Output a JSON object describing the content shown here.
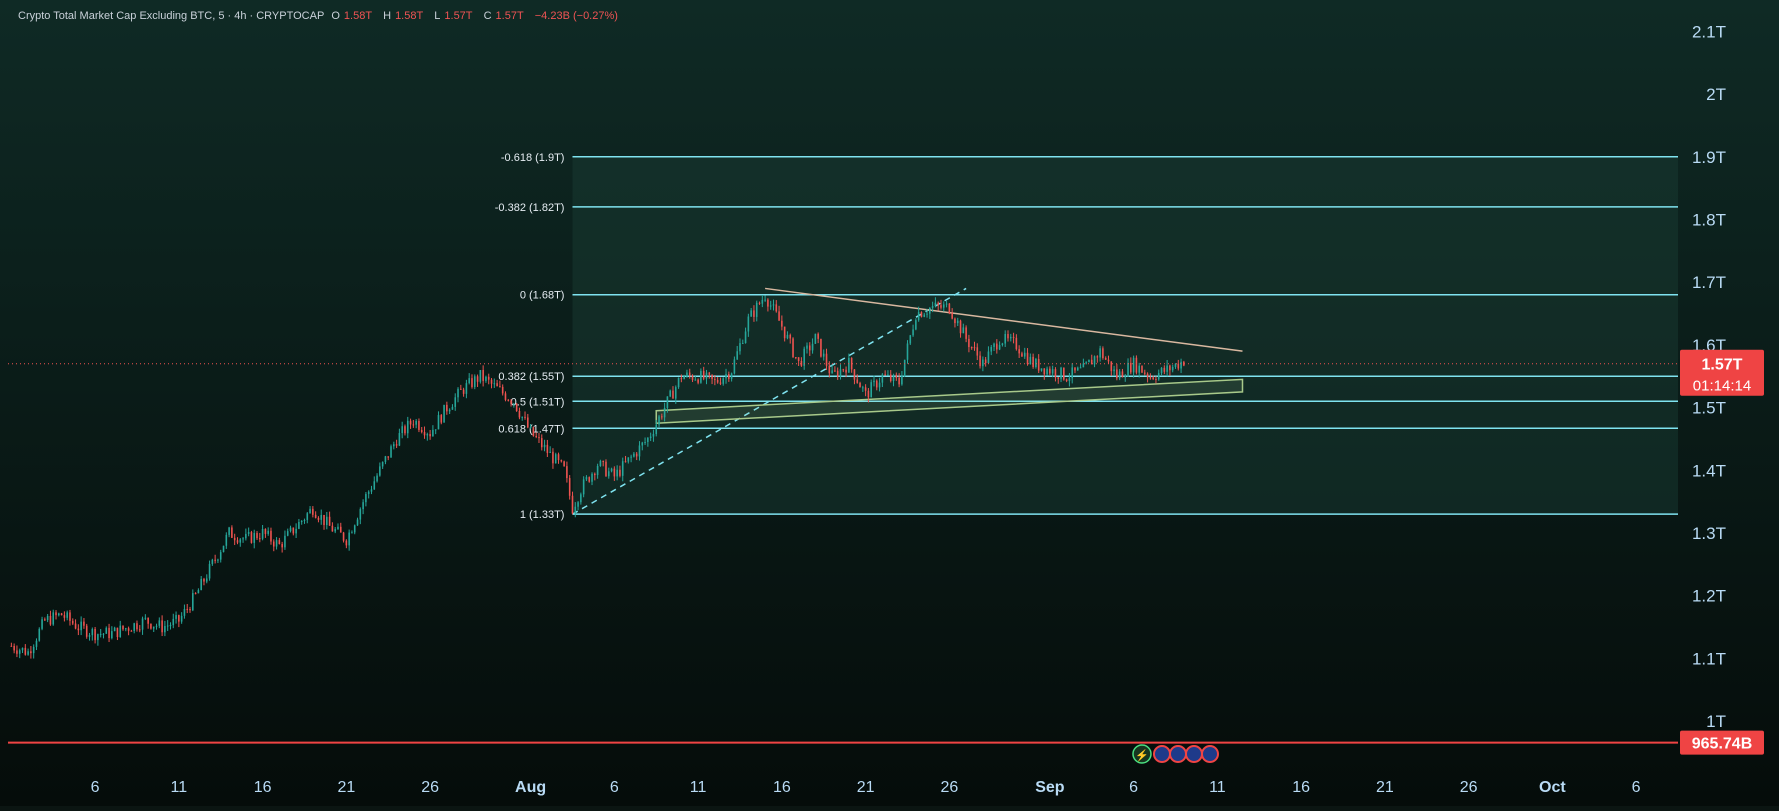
{
  "header": {
    "symbol_title": "Crypto Total Market Cap Excluding BTC, 5 · 4h · CRYPTOCAP",
    "open_label": "O",
    "open_value": "1.58T",
    "high_label": "H",
    "high_value": "1.58T",
    "low_label": "L",
    "low_value": "1.57T",
    "close_label": "C",
    "close_value": "1.57T",
    "change": "−4.23B (−0.27%)"
  },
  "price_axis": {
    "ticks": [
      {
        "label": "2.1T",
        "value": 2.1
      },
      {
        "label": "2T",
        "value": 2.0
      },
      {
        "label": "1.9T",
        "value": 1.9
      },
      {
        "label": "1.8T",
        "value": 1.8
      },
      {
        "label": "1.7T",
        "value": 1.7
      },
      {
        "label": "1.6T",
        "value": 1.6
      },
      {
        "label": "1.5T",
        "value": 1.5
      },
      {
        "label": "1.4T",
        "value": 1.4
      },
      {
        "label": "1.3T",
        "value": 1.3
      },
      {
        "label": "1.2T",
        "value": 1.2
      },
      {
        "label": "1.1T",
        "value": 1.1
      },
      {
        "label": "1T",
        "value": 1.0
      }
    ],
    "current_price_label": "1.57T",
    "current_price_value": 1.57,
    "countdown": "01:14:14",
    "alert_label": "965.74B",
    "alert_value": 0.96574
  },
  "time_axis": {
    "ticks": [
      {
        "label": "6",
        "day": -26,
        "bold": false
      },
      {
        "label": "11",
        "day": -21,
        "bold": false
      },
      {
        "label": "16",
        "day": -16,
        "bold": false
      },
      {
        "label": "21",
        "day": -11,
        "bold": false
      },
      {
        "label": "26",
        "day": -6,
        "bold": false
      },
      {
        "label": "Aug",
        "day": 0,
        "bold": true
      },
      {
        "label": "6",
        "day": 5,
        "bold": false
      },
      {
        "label": "11",
        "day": 10,
        "bold": false
      },
      {
        "label": "16",
        "day": 15,
        "bold": false
      },
      {
        "label": "21",
        "day": 20,
        "bold": false
      },
      {
        "label": "26",
        "day": 25,
        "bold": false
      },
      {
        "label": "Sep",
        "day": 31,
        "bold": true
      },
      {
        "label": "6",
        "day": 36,
        "bold": false
      },
      {
        "label": "11",
        "day": 41,
        "bold": false
      },
      {
        "label": "16",
        "day": 46,
        "bold": false
      },
      {
        "label": "21",
        "day": 51,
        "bold": false
      },
      {
        "label": "26",
        "day": 56,
        "bold": false
      },
      {
        "label": "Oct",
        "day": 61,
        "bold": true
      },
      {
        "label": "6",
        "day": 66,
        "bold": false
      }
    ]
  },
  "fibonacci": {
    "levels": [
      {
        "label": "-0.618 (1.9T)",
        "value": 1.9
      },
      {
        "label": "-0.382 (1.82T)",
        "value": 1.82
      },
      {
        "label": "0 (1.68T)",
        "value": 1.68
      },
      {
        "label": "0.382 (1.55T)",
        "value": 1.55
      },
      {
        "label": "0.5 (1.51T)",
        "value": 1.51
      },
      {
        "label": "0.618 (1.47T)",
        "value": 1.467
      },
      {
        "label": "1 (1.33T)",
        "value": 1.33
      }
    ],
    "start_day": 2.5,
    "end_day": 69.5,
    "color": "#7fe3f0",
    "fill_color": "#1a3d36"
  },
  "drawings": {
    "descending_trendline": {
      "from": {
        "day": 14,
        "value": 1.69
      },
      "to": {
        "day": 42.5,
        "value": 1.59
      },
      "color": "#d9b8a0"
    },
    "dashed_trendline": {
      "from": {
        "day": 2.5,
        "value": 1.33
      },
      "to": {
        "day": 26,
        "value": 1.69
      },
      "color": "#7fe3f0"
    },
    "rising_channel": {
      "lower": {
        "from": {
          "day": 7.5,
          "value": 1.475
        },
        "to": {
          "day": 42.5,
          "value": 1.525
        }
      },
      "upper": {
        "from": {
          "day": 7.5,
          "value": 1.495
        },
        "to": {
          "day": 42.5,
          "value": 1.545
        }
      },
      "color": "#a8c98a"
    }
  },
  "events_badge": {
    "label": "⚡",
    "day": 36.5
  },
  "colors": {
    "up": "#26a69a",
    "down": "#ef5350",
    "background_top": "#0f2a25",
    "background_bottom": "#050c0a",
    "axis_text": "#b9dbf5",
    "price_badge": "#ef4444"
  },
  "chart_data": {
    "type": "candlestick",
    "title": "Crypto Total Market Cap Excluding BTC",
    "interval": "4h",
    "x_unit": "days relative to Aug 1",
    "y_unit": "T (trillion USD)",
    "ylim": [
      0.93,
      2.15
    ],
    "xlim": [
      -31.2,
      68.5
    ],
    "close_path": [
      [
        -31,
        1.12
      ],
      [
        -30,
        1.11
      ],
      [
        -29,
        1.16
      ],
      [
        -28,
        1.17
      ],
      [
        -27,
        1.15
      ],
      [
        -26,
        1.14
      ],
      [
        -25,
        1.14
      ],
      [
        -24,
        1.15
      ],
      [
        -23,
        1.16
      ],
      [
        -22,
        1.15
      ],
      [
        -21,
        1.16
      ],
      [
        -20,
        1.2
      ],
      [
        -19,
        1.25
      ],
      [
        -18,
        1.3
      ],
      [
        -17,
        1.29
      ],
      [
        -16,
        1.3
      ],
      [
        -15,
        1.28
      ],
      [
        -14,
        1.31
      ],
      [
        -13,
        1.34
      ],
      [
        -12,
        1.31
      ],
      [
        -11,
        1.29
      ],
      [
        -10,
        1.35
      ],
      [
        -9,
        1.4
      ],
      [
        -8,
        1.45
      ],
      [
        -7,
        1.48
      ],
      [
        -6,
        1.46
      ],
      [
        -5,
        1.5
      ],
      [
        -4,
        1.53
      ],
      [
        -3,
        1.55
      ],
      [
        -2,
        1.53
      ],
      [
        -1,
        1.51
      ],
      [
        0,
        1.46
      ],
      [
        1,
        1.43
      ],
      [
        2,
        1.4
      ],
      [
        2.5,
        1.34
      ],
      [
        3,
        1.37
      ],
      [
        4,
        1.41
      ],
      [
        5,
        1.39
      ],
      [
        6,
        1.42
      ],
      [
        7,
        1.45
      ],
      [
        8,
        1.5
      ],
      [
        9,
        1.55
      ],
      [
        10,
        1.55
      ],
      [
        11,
        1.54
      ],
      [
        12,
        1.56
      ],
      [
        13,
        1.64
      ],
      [
        14,
        1.68
      ],
      [
        15,
        1.63
      ],
      [
        16,
        1.57
      ],
      [
        17,
        1.61
      ],
      [
        18,
        1.55
      ],
      [
        19,
        1.57
      ],
      [
        20,
        1.52
      ],
      [
        21,
        1.55
      ],
      [
        22,
        1.54
      ],
      [
        23,
        1.65
      ],
      [
        24,
        1.66
      ],
      [
        25,
        1.66
      ],
      [
        26,
        1.61
      ],
      [
        27,
        1.57
      ],
      [
        28,
        1.61
      ],
      [
        29,
        1.6
      ],
      [
        30,
        1.57
      ],
      [
        31,
        1.56
      ],
      [
        32,
        1.55
      ],
      [
        33,
        1.56
      ],
      [
        34,
        1.59
      ],
      [
        35,
        1.55
      ],
      [
        36,
        1.57
      ],
      [
        37,
        1.55
      ],
      [
        38,
        1.56
      ],
      [
        39,
        1.575
      ]
    ]
  }
}
